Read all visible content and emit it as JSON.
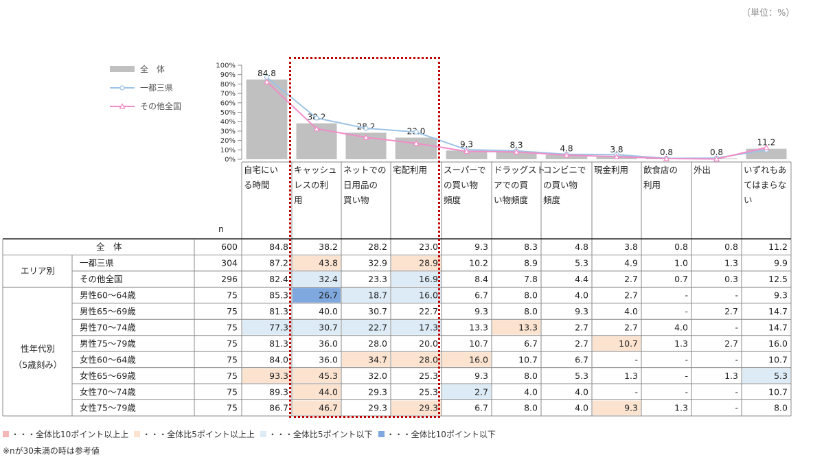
{
  "unit_label": "（単位：%）",
  "legend_top": [
    {
      "label": "全　体",
      "color": "#c0c0c0",
      "kind": "bar"
    },
    {
      "label": "一都三県",
      "color": "#9dc3e6",
      "kind": "line"
    },
    {
      "label": "その他全国",
      "color": "#f28cc8",
      "kind": "line"
    }
  ],
  "legend_bottom": [
    {
      "label": "・・・全体比10ポイント以上上",
      "color": "#f4b6b6"
    },
    {
      "label": "・・・全体比5ポイント以上上",
      "color": "#fbe3d0"
    },
    {
      "label": "・・・全体比5ポイント以下",
      "color": "#dcebf5"
    },
    {
      "label": "・・・全体比10ポイント以下",
      "color": "#7fa8de"
    }
  ],
  "footnote": "※nが30未満の時は参考値",
  "n_header": "n",
  "highlight_colors": {
    "up10": "#f4b6b6",
    "up5": "#fbe3d0",
    "down5": "#dcebf5",
    "down10": "#7fa8de"
  },
  "chart_data": {
    "type": "bar",
    "categories": [
      [
        "自宅にい",
        "る時間"
      ],
      [
        "キャッシュ",
        "レスの利",
        "用"
      ],
      [
        "ネットでの",
        "日用品の",
        "買い物"
      ],
      [
        "宅配利用"
      ],
      [
        "スーパーで",
        "の買い物",
        "頻度"
      ],
      [
        "ドラッグスト",
        "アでの買",
        "い物頻度"
      ],
      [
        "コンビニで",
        "の買い物",
        "頻度"
      ],
      [
        "現金利用"
      ],
      [
        "飲食店の",
        "利用"
      ],
      [
        "外出"
      ],
      [
        "いずれもあ",
        "てはまらな",
        "い"
      ]
    ],
    "ylim": [
      0,
      100
    ],
    "yticks": [
      "0%",
      "10%",
      "20%",
      "30%",
      "40%",
      "50%",
      "60%",
      "70%",
      "80%",
      "90%",
      "100%"
    ],
    "bar_labels": [
      "84.8",
      "38.2",
      "28.2",
      "23.0",
      "9.3",
      "8.3",
      "4.8",
      "3.8",
      "0.8",
      "0.8",
      "11.2"
    ],
    "series": [
      {
        "name": "全　体",
        "type": "bar",
        "values": [
          84.8,
          38.2,
          28.2,
          23.0,
          9.3,
          8.3,
          4.8,
          3.8,
          0.8,
          0.8,
          11.2
        ]
      },
      {
        "name": "一都三県",
        "type": "line",
        "values": [
          87.2,
          43.8,
          32.9,
          28.9,
          10.2,
          8.9,
          5.3,
          4.9,
          1.0,
          1.3,
          9.9
        ]
      },
      {
        "name": "その他全国",
        "type": "line",
        "values": [
          82.4,
          32.4,
          23.3,
          16.9,
          8.4,
          7.8,
          4.4,
          2.7,
          0.7,
          0.3,
          12.5
        ]
      }
    ]
  },
  "table": {
    "rows": [
      {
        "group": "",
        "label": "全　体",
        "n": "600",
        "values": [
          "84.8",
          "38.2",
          "28.2",
          "23.0",
          "9.3",
          "8.3",
          "4.8",
          "3.8",
          "0.8",
          "0.8",
          "11.2"
        ],
        "hl": [
          "",
          "",
          "",
          "",
          "",
          "",
          "",
          "",
          "",
          "",
          ""
        ]
      },
      {
        "group": "エリア別",
        "label": "一都三県",
        "n": "304",
        "values": [
          "87.2",
          "43.8",
          "32.9",
          "28.9",
          "10.2",
          "8.9",
          "5.3",
          "4.9",
          "1.0",
          "1.3",
          "9.9"
        ],
        "hl": [
          "",
          "up5",
          "",
          "up5",
          "",
          "",
          "",
          "",
          "",
          "",
          ""
        ]
      },
      {
        "group": "",
        "label": "その他全国",
        "n": "296",
        "values": [
          "82.4",
          "32.4",
          "23.3",
          "16.9",
          "8.4",
          "7.8",
          "4.4",
          "2.7",
          "0.7",
          "0.3",
          "12.5"
        ],
        "hl": [
          "",
          "down5",
          "",
          "down5",
          "",
          "",
          "",
          "",
          "",
          "",
          ""
        ]
      },
      {
        "group": "",
        "label": "男性60～64歳",
        "n": "75",
        "values": [
          "85.3",
          "26.7",
          "18.7",
          "16.0",
          "6.7",
          "8.0",
          "4.0",
          "2.7",
          "-",
          "-",
          "9.3"
        ],
        "hl": [
          "",
          "down10",
          "down5",
          "down5",
          "",
          "",
          "",
          "",
          "",
          "",
          ""
        ]
      },
      {
        "group": "",
        "label": "男性65～69歳",
        "n": "75",
        "values": [
          "81.3",
          "40.0",
          "30.7",
          "22.7",
          "9.3",
          "8.0",
          "9.3",
          "4.0",
          "-",
          "2.7",
          "14.7"
        ],
        "hl": [
          "",
          "",
          "",
          "",
          "",
          "",
          "",
          "",
          "",
          "",
          ""
        ]
      },
      {
        "group": "",
        "label": "男性70～74歳",
        "n": "75",
        "values": [
          "77.3",
          "30.7",
          "22.7",
          "17.3",
          "13.3",
          "13.3",
          "2.7",
          "2.7",
          "4.0",
          "-",
          "14.7"
        ],
        "hl": [
          "down5",
          "down5",
          "down5",
          "down5",
          "",
          "up5",
          "",
          "",
          "",
          "",
          ""
        ]
      },
      {
        "group": "性年代別",
        "label": "男性75～79歳",
        "n": "75",
        "values": [
          "81.3",
          "36.0",
          "28.0",
          "20.0",
          "10.7",
          "6.7",
          "2.7",
          "10.7",
          "1.3",
          "2.7",
          "16.0"
        ],
        "hl": [
          "",
          "",
          "",
          "",
          "",
          "",
          "",
          "up5",
          "",
          "",
          ""
        ]
      },
      {
        "group": "（5歳刻み）",
        "label": "女性60～64歳",
        "n": "75",
        "values": [
          "84.0",
          "36.0",
          "34.7",
          "28.0",
          "16.0",
          "10.7",
          "6.7",
          "-",
          "-",
          "-",
          "10.7"
        ],
        "hl": [
          "",
          "",
          "up5",
          "up5",
          "up5",
          "",
          "",
          "",
          "",
          "",
          ""
        ]
      },
      {
        "group": "",
        "label": "女性65～69歳",
        "n": "75",
        "values": [
          "93.3",
          "45.3",
          "32.0",
          "25.3",
          "9.3",
          "8.0",
          "5.3",
          "1.3",
          "-",
          "1.3",
          "5.3"
        ],
        "hl": [
          "up5",
          "up5",
          "",
          "",
          "",
          "",
          "",
          "",
          "",
          "",
          "down5"
        ]
      },
      {
        "group": "",
        "label": "女性70～74歳",
        "n": "75",
        "values": [
          "89.3",
          "44.0",
          "29.3",
          "25.3",
          "2.7",
          "4.0",
          "4.0",
          "-",
          "-",
          "-",
          "10.7"
        ],
        "hl": [
          "",
          "up5",
          "",
          "",
          "down5",
          "",
          "",
          "",
          "",
          "",
          ""
        ]
      },
      {
        "group": "",
        "label": "女性75～79歳",
        "n": "75",
        "values": [
          "86.7",
          "46.7",
          "29.3",
          "29.3",
          "6.7",
          "8.0",
          "4.0",
          "9.3",
          "1.3",
          "-",
          "8.0"
        ],
        "hl": [
          "",
          "up5",
          "",
          "up5",
          "",
          "",
          "",
          "up5",
          "",
          "",
          ""
        ]
      }
    ]
  }
}
